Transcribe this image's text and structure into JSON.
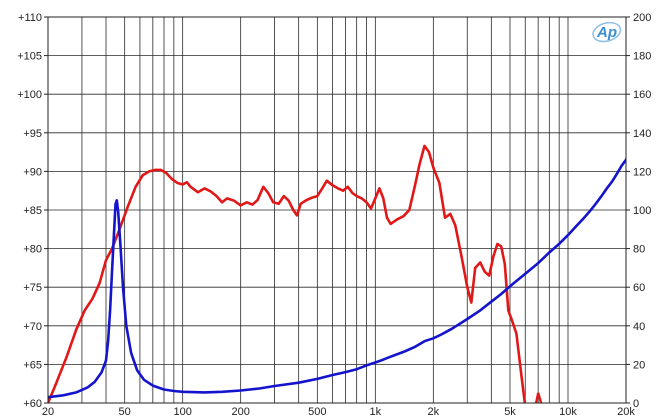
{
  "chart_data": {
    "type": "line",
    "title": "",
    "xlabel": "",
    "ylabel": "",
    "y2label": "",
    "x_scale": "log",
    "xlim": [
      20,
      20000
    ],
    "ylim": [
      60,
      110
    ],
    "y2lim": [
      0,
      200
    ],
    "grid": true,
    "legend": "none",
    "x_ticks": [
      {
        "value": 20,
        "label": "20"
      },
      {
        "value": 50,
        "label": "50"
      },
      {
        "value": 100,
        "label": "100"
      },
      {
        "value": 200,
        "label": "200"
      },
      {
        "value": 500,
        "label": "500"
      },
      {
        "value": 1000,
        "label": "1k"
      },
      {
        "value": 2000,
        "label": "2k"
      },
      {
        "value": 5000,
        "label": "5k"
      },
      {
        "value": 10000,
        "label": "10k"
      },
      {
        "value": 20000,
        "label": "20k"
      }
    ],
    "y_ticks": [
      {
        "value": 60,
        "label": "+60"
      },
      {
        "value": 65,
        "label": "+65"
      },
      {
        "value": 70,
        "label": "+70"
      },
      {
        "value": 75,
        "label": "+75"
      },
      {
        "value": 80,
        "label": "+80"
      },
      {
        "value": 85,
        "label": "+85"
      },
      {
        "value": 90,
        "label": "+90"
      },
      {
        "value": 95,
        "label": "+95"
      },
      {
        "value": 100,
        "label": "+100"
      },
      {
        "value": 105,
        "label": "+105"
      },
      {
        "value": 110,
        "label": "+110"
      }
    ],
    "y2_ticks": [
      {
        "value": 0,
        "label": "0"
      },
      {
        "value": 20,
        "label": "20"
      },
      {
        "value": 40,
        "label": "40"
      },
      {
        "value": 60,
        "label": "60"
      },
      {
        "value": 80,
        "label": "80"
      },
      {
        "value": 100,
        "label": "100"
      },
      {
        "value": 120,
        "label": "120"
      },
      {
        "value": 140,
        "label": "140"
      },
      {
        "value": 160,
        "label": "160"
      },
      {
        "value": 180,
        "label": "180"
      },
      {
        "value": 200,
        "label": "200"
      }
    ],
    "series": [
      {
        "axis": "left",
        "color": "#e01818",
        "points": [
          [
            20,
            60.0
          ],
          [
            22,
            62.5
          ],
          [
            25,
            66.0
          ],
          [
            28,
            69.5
          ],
          [
            31,
            72.0
          ],
          [
            34,
            73.5
          ],
          [
            37,
            75.5
          ],
          [
            40,
            78.5
          ],
          [
            43,
            80.0
          ],
          [
            47,
            82.5
          ],
          [
            52,
            85.5
          ],
          [
            57,
            88.0
          ],
          [
            62,
            89.5
          ],
          [
            67,
            90.0
          ],
          [
            72,
            90.2
          ],
          [
            77,
            90.2
          ],
          [
            82,
            89.8
          ],
          [
            88,
            89.0
          ],
          [
            94,
            88.5
          ],
          [
            100,
            88.3
          ],
          [
            105,
            88.6
          ],
          [
            110,
            88.0
          ],
          [
            120,
            87.3
          ],
          [
            130,
            87.8
          ],
          [
            140,
            87.4
          ],
          [
            150,
            86.8
          ],
          [
            160,
            86.0
          ],
          [
            170,
            86.5
          ],
          [
            185,
            86.2
          ],
          [
            200,
            85.6
          ],
          [
            215,
            86.0
          ],
          [
            230,
            85.7
          ],
          [
            245,
            86.3
          ],
          [
            262,
            88.0
          ],
          [
            278,
            87.2
          ],
          [
            295,
            86.0
          ],
          [
            315,
            85.8
          ],
          [
            335,
            86.8
          ],
          [
            355,
            86.2
          ],
          [
            375,
            85.0
          ],
          [
            392,
            84.3
          ],
          [
            410,
            85.8
          ],
          [
            440,
            86.3
          ],
          [
            470,
            86.6
          ],
          [
            500,
            86.8
          ],
          [
            530,
            87.8
          ],
          [
            560,
            88.8
          ],
          [
            600,
            88.2
          ],
          [
            640,
            87.8
          ],
          [
            680,
            87.5
          ],
          [
            720,
            88.0
          ],
          [
            760,
            87.2
          ],
          [
            800,
            86.8
          ],
          [
            850,
            86.5
          ],
          [
            900,
            86.0
          ],
          [
            950,
            85.2
          ],
          [
            1000,
            86.5
          ],
          [
            1050,
            87.8
          ],
          [
            1100,
            86.5
          ],
          [
            1150,
            84.0
          ],
          [
            1200,
            83.2
          ],
          [
            1300,
            83.8
          ],
          [
            1400,
            84.2
          ],
          [
            1500,
            85.0
          ],
          [
            1600,
            88.0
          ],
          [
            1700,
            91.0
          ],
          [
            1800,
            93.3
          ],
          [
            1900,
            92.5
          ],
          [
            2000,
            90.5
          ],
          [
            2150,
            88.5
          ],
          [
            2300,
            84.0
          ],
          [
            2450,
            84.5
          ],
          [
            2600,
            83.0
          ],
          [
            2800,
            79.0
          ],
          [
            3000,
            75.0
          ],
          [
            3150,
            73.0
          ],
          [
            3300,
            77.5
          ],
          [
            3500,
            78.2
          ],
          [
            3700,
            77.0
          ],
          [
            3900,
            76.5
          ],
          [
            4100,
            79.0
          ],
          [
            4300,
            80.6
          ],
          [
            4500,
            80.3
          ],
          [
            4700,
            78.0
          ],
          [
            4900,
            72.0
          ],
          [
            5150,
            70.5
          ],
          [
            5400,
            69.0
          ],
          [
            5700,
            64.0
          ],
          [
            6000,
            59.5
          ]
        ]
      },
      {
        "axis": "right",
        "color": "#1414cc",
        "points": [
          [
            20,
            3.0
          ],
          [
            24,
            4.0
          ],
          [
            28,
            5.5
          ],
          [
            32,
            8.0
          ],
          [
            35,
            11.0
          ],
          [
            38,
            16.0
          ],
          [
            40,
            22.0
          ],
          [
            41,
            32.0
          ],
          [
            42,
            48.0
          ],
          [
            43,
            68.0
          ],
          [
            44,
            88.0
          ],
          [
            44.8,
            103.0
          ],
          [
            45.5,
            105.0
          ],
          [
            46.3,
            99.0
          ],
          [
            47.5,
            82.0
          ],
          [
            49,
            60.0
          ],
          [
            51,
            40.0
          ],
          [
            54,
            26.0
          ],
          [
            58,
            17.0
          ],
          [
            63,
            12.0
          ],
          [
            70,
            9.0
          ],
          [
            80,
            7.0
          ],
          [
            90,
            6.2
          ],
          [
            100,
            5.8
          ],
          [
            130,
            5.5
          ],
          [
            160,
            5.8
          ],
          [
            200,
            6.5
          ],
          [
            250,
            7.5
          ],
          [
            300,
            8.8
          ],
          [
            400,
            10.5
          ],
          [
            500,
            12.5
          ],
          [
            600,
            14.5
          ],
          [
            700,
            16.0
          ],
          [
            800,
            17.5
          ],
          [
            900,
            19.5
          ],
          [
            1000,
            21.0
          ],
          [
            1100,
            22.5
          ],
          [
            1200,
            24.0
          ],
          [
            1400,
            26.5
          ],
          [
            1600,
            29.0
          ],
          [
            1800,
            32.0
          ],
          [
            2000,
            33.5
          ],
          [
            2200,
            35.5
          ],
          [
            2500,
            38.5
          ],
          [
            3000,
            43.5
          ],
          [
            3500,
            48.0
          ],
          [
            4000,
            52.5
          ],
          [
            4500,
            56.5
          ],
          [
            5000,
            60.5
          ],
          [
            6000,
            67.0
          ],
          [
            7000,
            72.5
          ],
          [
            8000,
            78.0
          ],
          [
            9000,
            82.5
          ],
          [
            10000,
            87.0
          ],
          [
            11000,
            91.5
          ],
          [
            12000,
            95.5
          ],
          [
            13000,
            99.5
          ],
          [
            14000,
            103.5
          ],
          [
            15000,
            107.5
          ],
          [
            16000,
            111.5
          ],
          [
            17000,
            115.0
          ],
          [
            18000,
            119.0
          ],
          [
            19000,
            123.0
          ],
          [
            20000,
            126.0
          ],
          [
            21000,
            131.0
          ],
          [
            22000,
            136.0
          ],
          [
            23000,
            141.0
          ]
        ]
      }
    ]
  },
  "logo": {
    "text": "Ap",
    "color": "#3d8fd0"
  }
}
